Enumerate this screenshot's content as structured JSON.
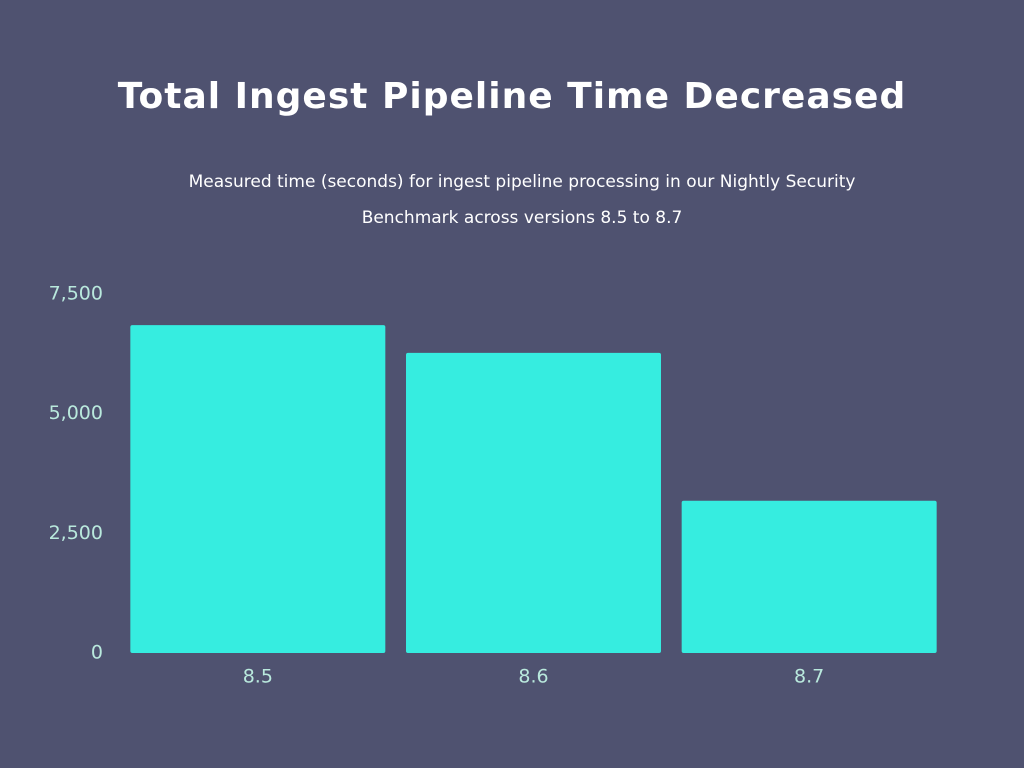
{
  "chart_data": {
    "type": "bar",
    "title": "Total Ingest Pipeline Time Decreased",
    "subtitle": "Measured time (seconds) for ingest pipeline processing in our Nightly Security Benchmark across versions 8.5 to 8.7",
    "categories": [
      "8.5",
      "8.6",
      "8.7"
    ],
    "values": [
      6850,
      6270,
      3180
    ],
    "color": "#36ede0",
    "ylim": [
      0,
      7500
    ],
    "yticks": [
      0,
      {
        "value": 2500,
        "label": "2,500"
      },
      {
        "value": 5000,
        "label": "5,000"
      },
      {
        "value": 7500,
        "label": "7,500"
      }
    ],
    "grid": false
  }
}
